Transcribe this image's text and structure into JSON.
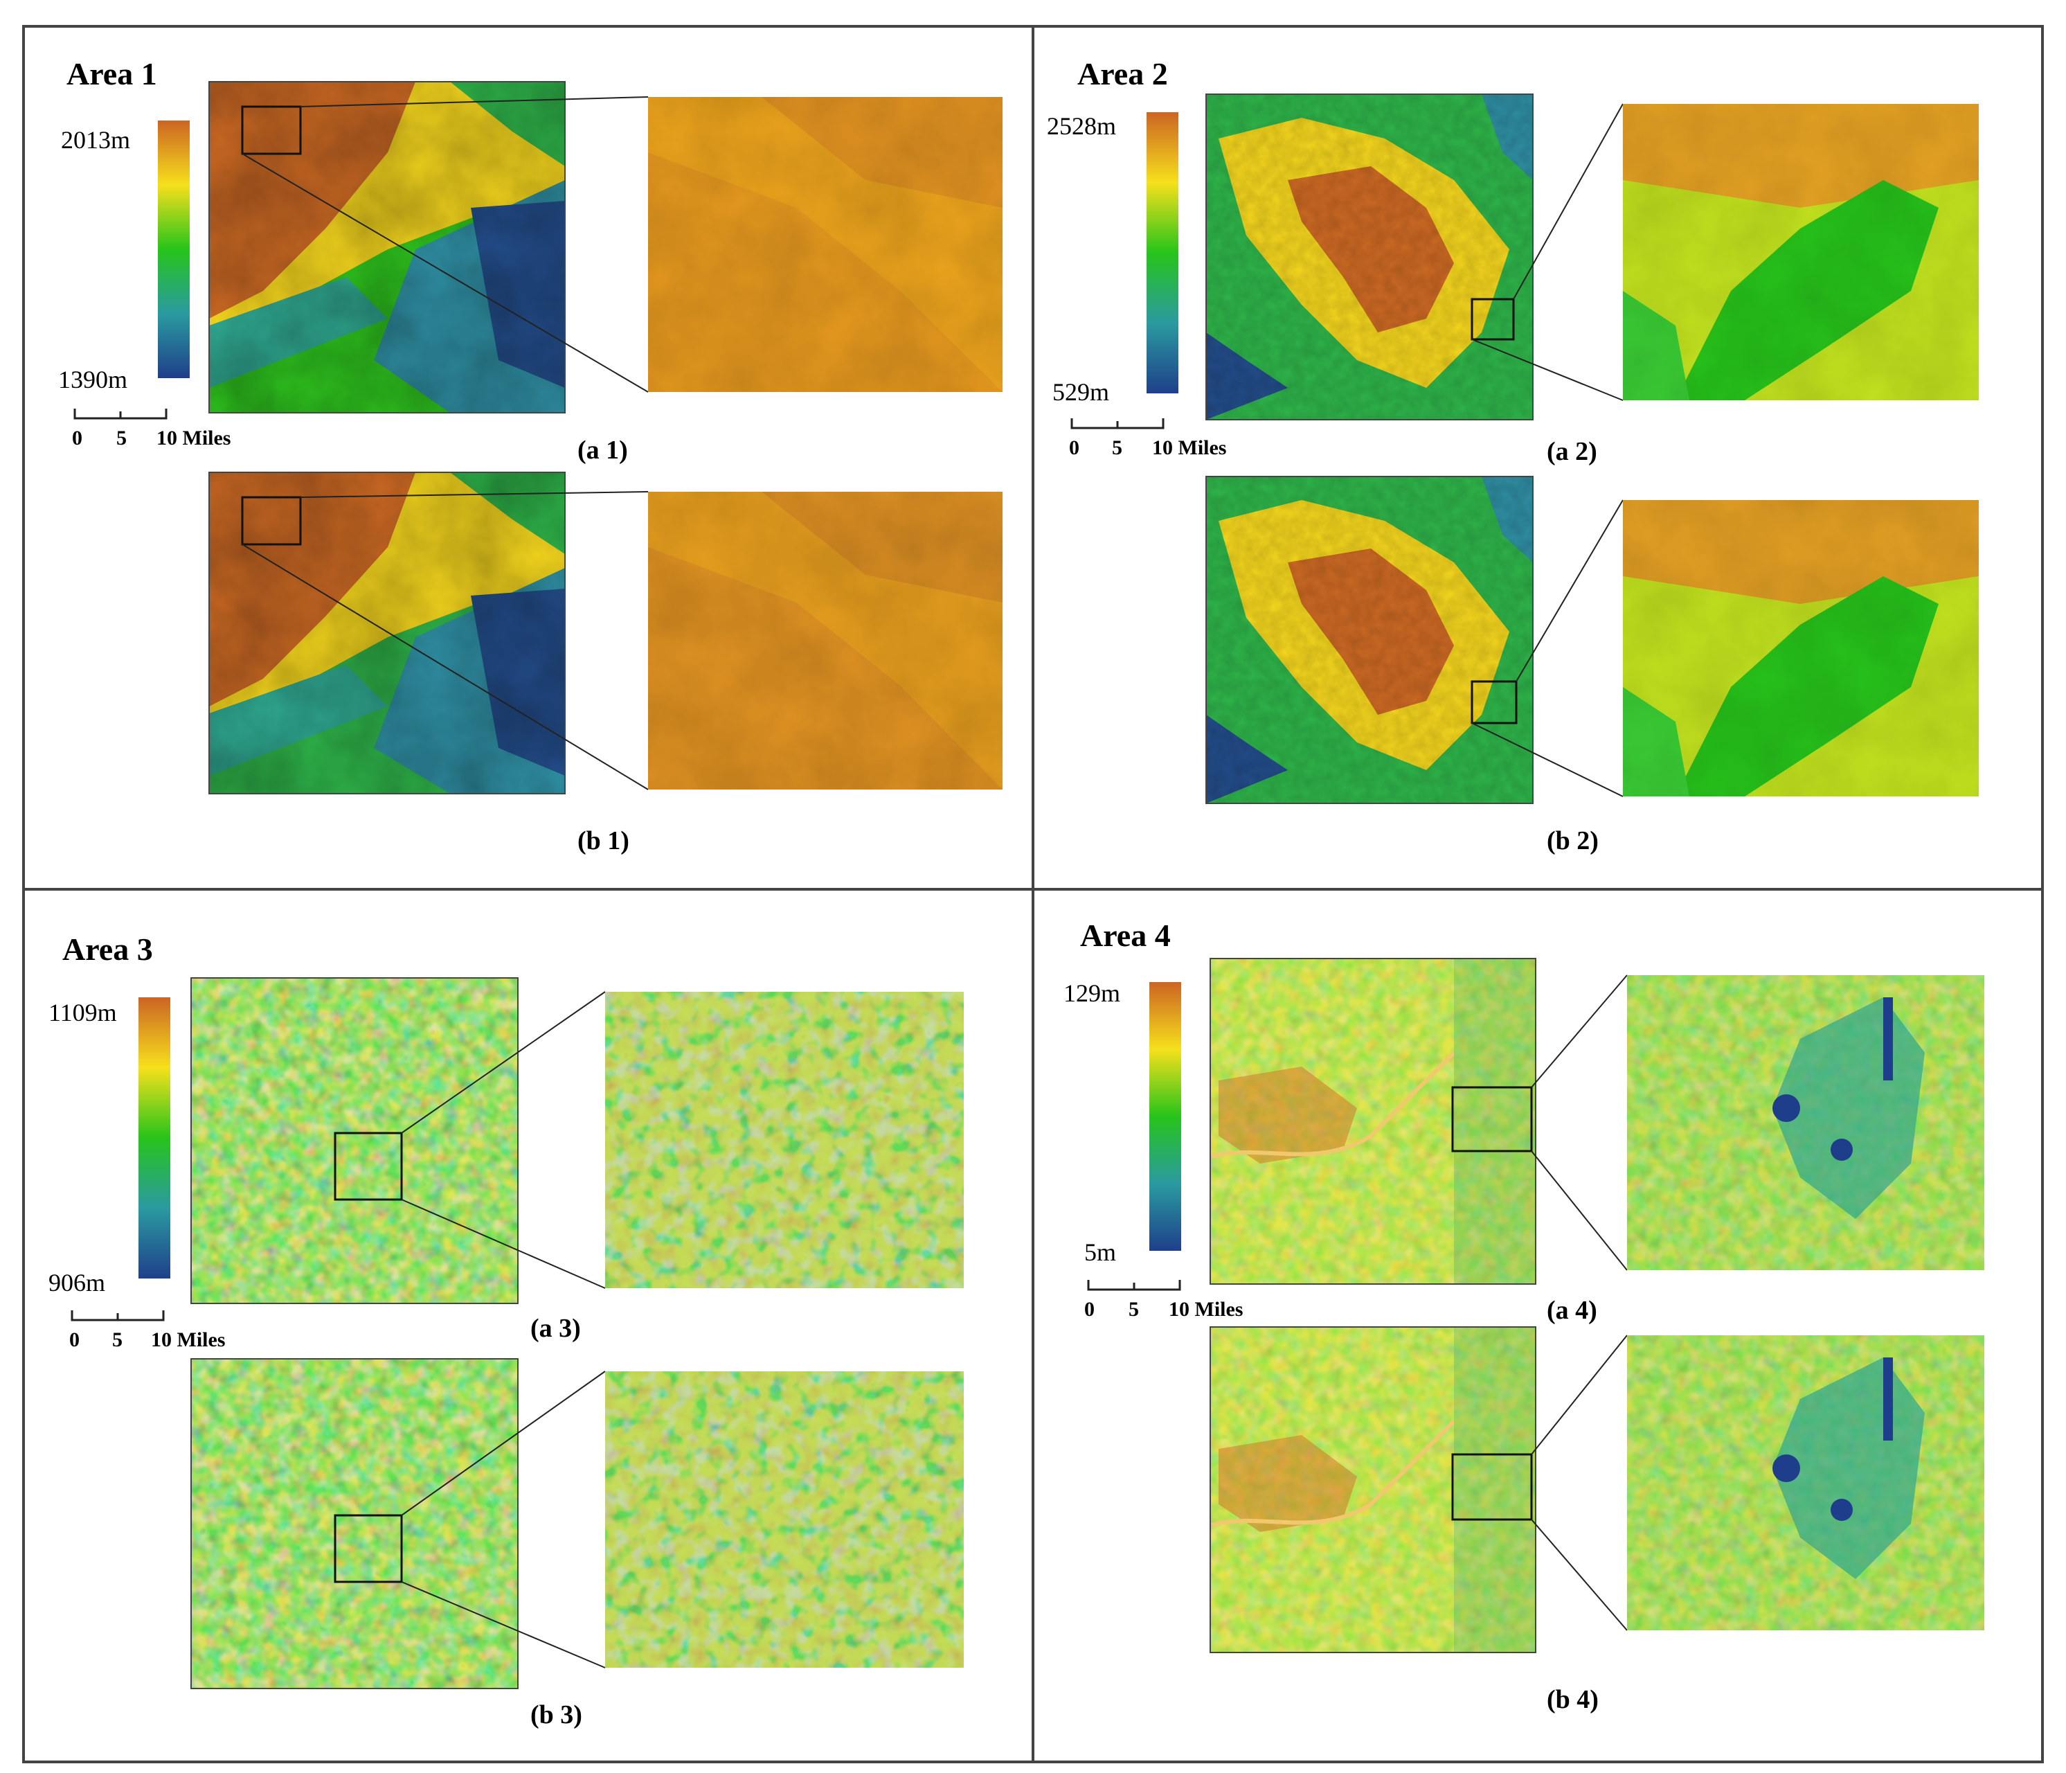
{
  "figure": {
    "colors": {
      "ramp": [
        "#2e4d8a",
        "#2f8fa3",
        "#2fc41e",
        "#f5e21e",
        "#cd6624"
      ],
      "frame": "#444444"
    },
    "areas": [
      {
        "title": "Area 1",
        "legend_max": "2013m",
        "legend_min": "1390m",
        "scale": {
          "ticks": [
            "0",
            "5",
            "10 Miles"
          ]
        },
        "panels": [
          {
            "label": "(a 1)",
            "mean_level": 0.63
          },
          {
            "label": "(b 1)",
            "mean_level": 0.6
          }
        ]
      },
      {
        "title": "Area 2",
        "legend_max": "2528m",
        "legend_min": "529m",
        "scale": {
          "ticks": [
            "0",
            "5",
            "10 Miles"
          ]
        },
        "panels": [
          {
            "label": "(a 2)",
            "mean_level": 0.55
          },
          {
            "label": "(b 2)",
            "mean_level": 0.55
          }
        ]
      },
      {
        "title": "Area 3",
        "legend_max": "1109m",
        "legend_min": "906m",
        "scale": {
          "ticks": [
            "0",
            "5",
            "10 Miles"
          ]
        },
        "panels": [
          {
            "label": "(a 3)",
            "mean_level": 0.5
          },
          {
            "label": "(b 3)",
            "mean_level": 0.5
          }
        ]
      },
      {
        "title": "Area 4",
        "legend_max": "129m",
        "legend_min": "5m",
        "scale": {
          "ticks": [
            "0",
            "5",
            "10 Miles"
          ]
        },
        "panels": [
          {
            "label": "(a 4)",
            "mean_level": 0.58
          },
          {
            "label": "(b 4)",
            "mean_level": 0.58
          }
        ]
      }
    ]
  }
}
